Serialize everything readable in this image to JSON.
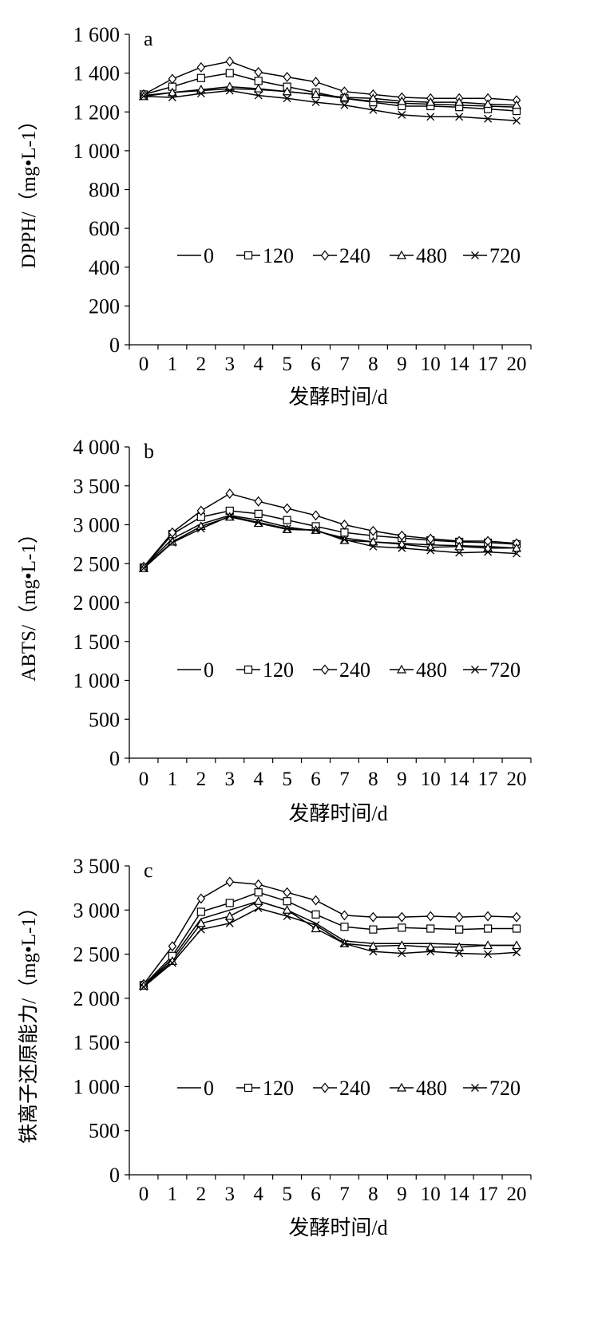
{
  "chart_data": [
    {
      "type": "line",
      "panel_label": "a",
      "ylabel": "DPPH/（mg•L-1）",
      "xlabel": "发酵时间/d",
      "ylim": [
        0,
        1600
      ],
      "yticks": [
        0,
        200,
        400,
        600,
        800,
        1000,
        1200,
        1400,
        1600
      ],
      "ytick_labels": [
        "0",
        "200",
        "400",
        "600",
        "800",
        "1 000",
        "1 200",
        "1 400",
        "1 600"
      ],
      "categories": [
        "0",
        "1",
        "2",
        "3",
        "4",
        "5",
        "6",
        "7",
        "8",
        "9",
        "10",
        "14",
        "17",
        "20"
      ],
      "legend_position": "middle",
      "series": [
        {
          "name": "0",
          "marker": "none",
          "values": [
            1285,
            1300,
            1310,
            1320,
            1315,
            1305,
            1290,
            1270,
            1255,
            1245,
            1240,
            1235,
            1230,
            1225
          ]
        },
        {
          "name": "120",
          "marker": "square",
          "values": [
            1290,
            1330,
            1375,
            1400,
            1360,
            1330,
            1300,
            1270,
            1250,
            1230,
            1230,
            1225,
            1215,
            1205
          ]
        },
        {
          "name": "240",
          "marker": "diamond",
          "values": [
            1290,
            1370,
            1430,
            1460,
            1405,
            1380,
            1355,
            1305,
            1290,
            1275,
            1270,
            1270,
            1270,
            1260
          ]
        },
        {
          "name": "480",
          "marker": "triangle",
          "values": [
            1280,
            1300,
            1315,
            1330,
            1320,
            1305,
            1290,
            1275,
            1270,
            1255,
            1250,
            1250,
            1240,
            1235
          ]
        },
        {
          "name": "720",
          "marker": "x",
          "values": [
            1280,
            1275,
            1295,
            1310,
            1285,
            1270,
            1250,
            1235,
            1210,
            1185,
            1175,
            1175,
            1165,
            1155
          ]
        }
      ]
    },
    {
      "type": "line",
      "panel_label": "b",
      "ylabel": "ABTS/（mg•L-1）",
      "xlabel": "发酵时间/d",
      "ylim": [
        0,
        4000
      ],
      "yticks": [
        0,
        500,
        1000,
        1500,
        2000,
        2500,
        3000,
        3500,
        4000
      ],
      "ytick_labels": [
        "0",
        "500",
        "1 000",
        "1 500",
        "2 000",
        "2 500",
        "3 000",
        "3 500",
        "4 000"
      ],
      "categories": [
        "0",
        "1",
        "2",
        "3",
        "4",
        "5",
        "6",
        "7",
        "8",
        "9",
        "10",
        "14",
        "17",
        "20"
      ],
      "legend_position": "middle",
      "series": [
        {
          "name": "0",
          "marker": "none",
          "values": [
            2450,
            2820,
            3010,
            3120,
            3060,
            2970,
            2920,
            2830,
            2780,
            2760,
            2740,
            2730,
            2720,
            2700
          ]
        },
        {
          "name": "120",
          "marker": "square",
          "values": [
            2450,
            2880,
            3100,
            3180,
            3140,
            3060,
            2980,
            2900,
            2860,
            2830,
            2800,
            2780,
            2770,
            2750
          ]
        },
        {
          "name": "240",
          "marker": "diamond",
          "values": [
            2460,
            2900,
            3180,
            3400,
            3300,
            3210,
            3120,
            3000,
            2920,
            2860,
            2820,
            2790,
            2790,
            2760
          ]
        },
        {
          "name": "480",
          "marker": "triangle",
          "values": [
            2440,
            2780,
            2980,
            3100,
            3020,
            2940,
            2930,
            2800,
            2780,
            2750,
            2710,
            2720,
            2700,
            2700
          ]
        },
        {
          "name": "720",
          "marker": "x",
          "values": [
            2440,
            2770,
            2950,
            3110,
            3030,
            2950,
            2930,
            2810,
            2720,
            2700,
            2670,
            2640,
            2650,
            2630
          ]
        }
      ]
    },
    {
      "type": "line",
      "panel_label": "c",
      "ylabel": "铁离子还原能力/（mg•L-1）",
      "xlabel": "发酵时间/d",
      "ylim": [
        0,
        3500
      ],
      "yticks": [
        0,
        500,
        1000,
        1500,
        2000,
        2500,
        3000,
        3500
      ],
      "ytick_labels": [
        "0",
        "500",
        "1 000",
        "1 500",
        "2 000",
        "2 500",
        "3 000",
        "3 500"
      ],
      "categories": [
        "0",
        "1",
        "2",
        "3",
        "4",
        "5",
        "6",
        "7",
        "8",
        "9",
        "10",
        "14",
        "17",
        "20"
      ],
      "legend_position": "middle",
      "series": [
        {
          "name": "0",
          "marker": "none",
          "values": [
            2140,
            2450,
            2900,
            3000,
            3100,
            3000,
            2850,
            2650,
            2620,
            2620,
            2620,
            2610,
            2600,
            2600
          ]
        },
        {
          "name": "120",
          "marker": "square",
          "values": [
            2150,
            2480,
            2980,
            3080,
            3200,
            3100,
            2950,
            2810,
            2780,
            2800,
            2790,
            2780,
            2790,
            2790
          ]
        },
        {
          "name": "240",
          "marker": "diamond",
          "values": [
            2160,
            2590,
            3130,
            3320,
            3290,
            3200,
            3110,
            2940,
            2920,
            2920,
            2930,
            2920,
            2930,
            2920
          ]
        },
        {
          "name": "480",
          "marker": "triangle",
          "values": [
            2140,
            2420,
            2850,
            2930,
            3100,
            3000,
            2790,
            2620,
            2590,
            2600,
            2580,
            2580,
            2600,
            2600
          ]
        },
        {
          "name": "720",
          "marker": "x",
          "values": [
            2130,
            2400,
            2780,
            2850,
            3020,
            2930,
            2830,
            2620,
            2530,
            2510,
            2530,
            2510,
            2500,
            2520
          ]
        }
      ]
    }
  ]
}
